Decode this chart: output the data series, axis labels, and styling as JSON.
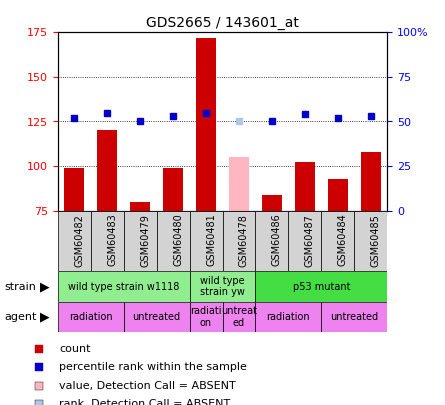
{
  "title": "GDS2665 / 143601_at",
  "samples": [
    "GSM60482",
    "GSM60483",
    "GSM60479",
    "GSM60480",
    "GSM60481",
    "GSM60478",
    "GSM60486",
    "GSM60487",
    "GSM60484",
    "GSM60485"
  ],
  "counts": [
    99,
    120,
    80,
    99,
    172,
    null,
    84,
    102,
    93,
    108
  ],
  "counts_absent": [
    null,
    null,
    null,
    null,
    null,
    105,
    null,
    null,
    null,
    null
  ],
  "percentile": [
    52,
    55,
    50,
    53,
    55,
    null,
    50,
    54,
    52,
    53
  ],
  "percentile_absent": [
    null,
    null,
    null,
    null,
    null,
    50,
    null,
    null,
    null,
    null
  ],
  "ylim_left": [
    75,
    175
  ],
  "ylim_right": [
    0,
    100
  ],
  "yticks_left": [
    75,
    100,
    125,
    150,
    175
  ],
  "yticks_right": [
    0,
    25,
    50,
    75,
    100
  ],
  "ytick_labels_right": [
    "0",
    "25",
    "50",
    "75",
    "100%"
  ],
  "bar_color": "#cc0000",
  "bar_absent_color": "#ffb6c1",
  "dot_color": "#0000cc",
  "dot_absent_color": "#b0c8e8",
  "strain_groups": [
    {
      "label": "wild type strain w1118",
      "start": 0,
      "end": 4,
      "color": "#90ee90"
    },
    {
      "label": "wild type\nstrain yw",
      "start": 4,
      "end": 6,
      "color": "#90ee90"
    },
    {
      "label": "p53 mutant",
      "start": 6,
      "end": 10,
      "color": "#44dd44"
    }
  ],
  "agent_groups": [
    {
      "label": "radiation",
      "start": 0,
      "end": 2,
      "color": "#ee82ee"
    },
    {
      "label": "untreated",
      "start": 2,
      "end": 4,
      "color": "#ee82ee"
    },
    {
      "label": "radiati\non",
      "start": 4,
      "end": 5,
      "color": "#ee82ee"
    },
    {
      "label": "untreat\ned",
      "start": 5,
      "end": 6,
      "color": "#ee82ee"
    },
    {
      "label": "radiation",
      "start": 6,
      "end": 8,
      "color": "#ee82ee"
    },
    {
      "label": "untreated",
      "start": 8,
      "end": 10,
      "color": "#ee82ee"
    }
  ],
  "legend_items": [
    {
      "label": "count",
      "color": "#cc0000"
    },
    {
      "label": "percentile rank within the sample",
      "color": "#0000cc"
    },
    {
      "label": "value, Detection Call = ABSENT",
      "color": "#ffb6c1"
    },
    {
      "label": "rank, Detection Call = ABSENT",
      "color": "#b0c8e8"
    }
  ]
}
